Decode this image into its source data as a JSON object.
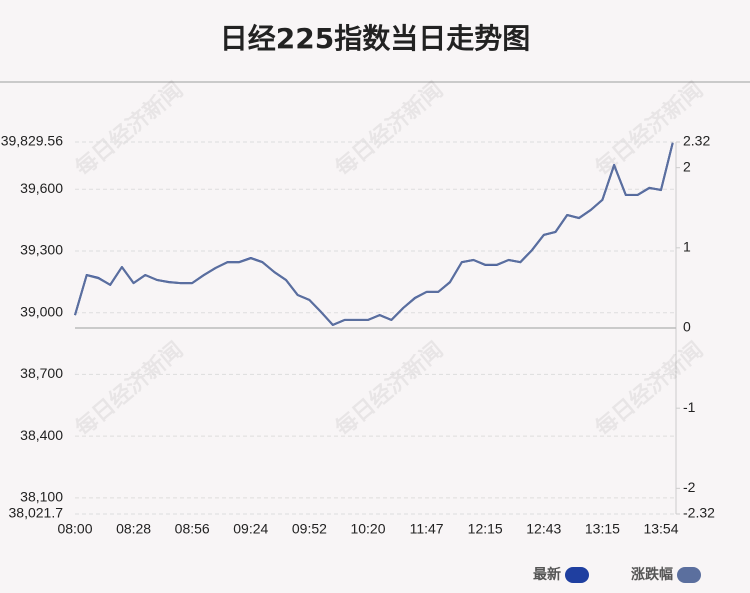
{
  "chart_data": {
    "type": "line",
    "title": "日经225指数当日走势图",
    "watermark": "每日经济新闻",
    "categories": [
      "08:00",
      null,
      null,
      null,
      null,
      "08:28",
      null,
      null,
      null,
      null,
      "08:56",
      null,
      null,
      null,
      null,
      "09:24",
      null,
      null,
      null,
      null,
      "09:52",
      null,
      null,
      null,
      null,
      "10:20",
      null,
      null,
      null,
      null,
      "11:47",
      null,
      null,
      null,
      null,
      "12:15",
      null,
      null,
      null,
      null,
      "12:43",
      null,
      null,
      null,
      null,
      "13:15",
      null,
      null,
      null,
      null,
      "13:54",
      null
    ],
    "series": [
      {
        "name": "最新",
        "color": "#1f3fa0",
        "values": [
          38989,
          39183,
          39169,
          39135,
          39222,
          39144,
          39183,
          39159,
          39149,
          39144,
          39144,
          39183,
          39217,
          39246,
          39246,
          39266,
          39246,
          39198,
          39159,
          39086,
          39062,
          39003,
          38940,
          38965,
          38965,
          38965,
          38989,
          38965,
          39023,
          39072,
          39101,
          39101,
          39149,
          39246,
          39256,
          39232,
          39232,
          39256,
          39246,
          39305,
          39378,
          39392,
          39475,
          39460,
          39499,
          39548,
          39718,
          39572,
          39572,
          39606,
          39597,
          39825
        ]
      },
      {
        "name": "涨跌幅",
        "color": "#5b6f9e",
        "axis": "y2",
        "values": [
          0.16,
          0.66,
          0.62,
          0.54,
          0.76,
          0.56,
          0.66,
          0.6,
          0.57,
          0.56,
          0.56,
          0.66,
          0.75,
          0.82,
          0.82,
          0.87,
          0.82,
          0.7,
          0.6,
          0.41,
          0.35,
          0.2,
          0.04,
          0.1,
          0.1,
          0.1,
          0.16,
          0.1,
          0.25,
          0.37,
          0.45,
          0.45,
          0.57,
          0.82,
          0.85,
          0.79,
          0.79,
          0.85,
          0.82,
          0.97,
          1.16,
          1.2,
          1.41,
          1.37,
          1.47,
          1.6,
          2.03,
          1.66,
          1.66,
          1.75,
          1.72,
          2.31
        ]
      }
    ],
    "ylim": [
      38021.7,
      39829.56
    ],
    "yticks": [
      {
        "value": 38021.7,
        "label": "38,021.7"
      },
      {
        "value": 38100,
        "label": "38,100"
      },
      {
        "value": 38400,
        "label": "38,400"
      },
      {
        "value": 38700,
        "label": "38,700"
      },
      {
        "value": 39000,
        "label": "39,000"
      },
      {
        "value": 39300,
        "label": "39,300"
      },
      {
        "value": 39600,
        "label": "39,600"
      },
      {
        "value": 39829.56,
        "label": "39,829.56"
      }
    ],
    "y2lim": [
      -2.32,
      2.32
    ],
    "y2ticks": [
      -2.32,
      -2,
      -1,
      0,
      1,
      2,
      2.32
    ],
    "grid": true
  }
}
